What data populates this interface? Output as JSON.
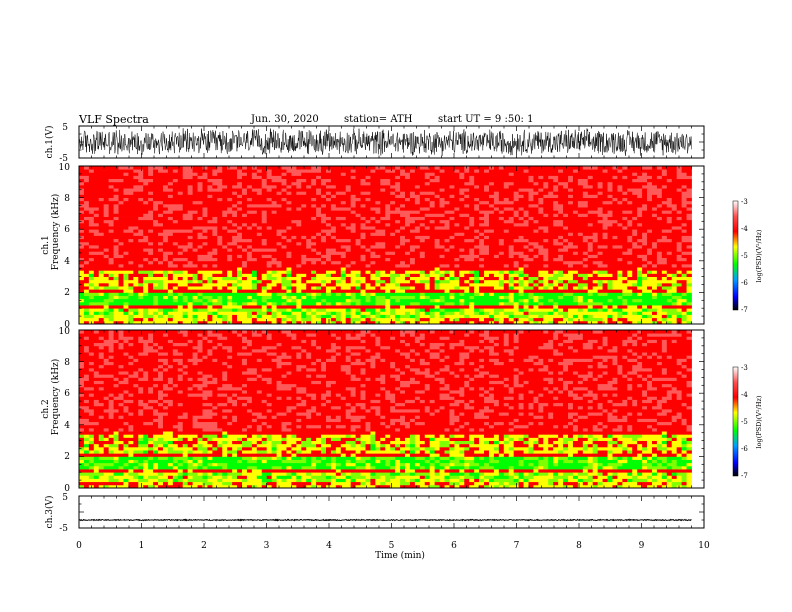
{
  "header": {
    "title": "VLF  Spectra",
    "date": "Jun. 30, 2020",
    "station": "station= ATH",
    "start": "start  UT  =    9  :50: 1"
  },
  "chart_data": [
    {
      "type": "line",
      "id": "ch1-waveform",
      "ylabel": "ch.1(V)",
      "ylim": [
        -5,
        5
      ],
      "yticks": [
        "5",
        "-5"
      ],
      "xlim": [
        0,
        10
      ],
      "data_extent_min": [
        0,
        9.8
      ],
      "amplitude_v": 4.5
    },
    {
      "type": "heatmap",
      "id": "ch1-spectrogram",
      "ylabel": [
        "ch.1",
        "Frequency  (kHz)"
      ],
      "ylim": [
        0,
        10
      ],
      "yticks": [
        "0",
        "2",
        "4",
        "6",
        "8",
        "10"
      ],
      "xlim": [
        0,
        10
      ],
      "data_extent_min": [
        0,
        9.8
      ],
      "colorbar": {
        "label": "log(PSD)(V²/Hz)",
        "range": [
          -7,
          -3
        ],
        "ticks": [
          "-3",
          "-4",
          "-5",
          "-6",
          "-7"
        ]
      }
    },
    {
      "type": "heatmap",
      "id": "ch2-spectrogram",
      "ylabel": [
        "ch.2",
        "Frequency  (kHz)"
      ],
      "ylim": [
        0,
        10
      ],
      "yticks": [
        "0",
        "2",
        "4",
        "6",
        "8",
        "10"
      ],
      "xlim": [
        0,
        10
      ],
      "data_extent_min": [
        0,
        9.8
      ],
      "colorbar": {
        "label": "log(PSD)(V²/Hz)",
        "range": [
          -7,
          -3
        ],
        "ticks": [
          "-3",
          "-4",
          "-5",
          "-6",
          "-7"
        ]
      }
    },
    {
      "type": "line",
      "id": "ch3-waveform",
      "ylabel": "ch.3(V)",
      "ylim": [
        -5,
        5
      ],
      "yticks": [
        "5",
        "-5"
      ],
      "xlim": [
        0,
        10
      ],
      "data_extent_min": [
        0,
        9.8
      ],
      "offset_v": -2.5,
      "amplitude_v": 0.2
    }
  ],
  "xaxis": {
    "label": "Time  (min)",
    "ticks": [
      "0",
      "1",
      "2",
      "3",
      "4",
      "5",
      "6",
      "7",
      "8",
      "9",
      "10"
    ]
  },
  "colors": {
    "axis": "#000000",
    "colormap": [
      "#000000",
      "#0000ff",
      "#00a0ff",
      "#00ff00",
      "#ffff00",
      "#ff0000",
      "#ffffff"
    ]
  }
}
